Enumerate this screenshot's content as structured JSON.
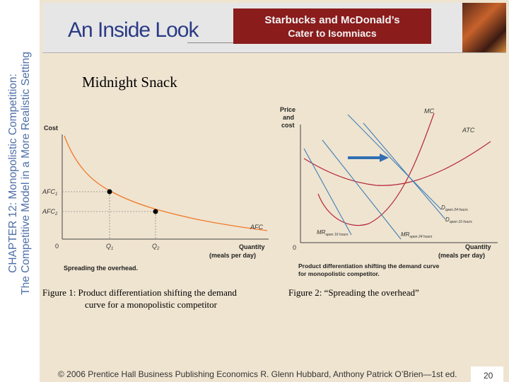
{
  "sidebar": {
    "chapter_line": "CHAPTER 12:  Monopolistic Competition:",
    "subtitle_line": "The Competitive Model in a More Realistic Setting"
  },
  "banner": {
    "title": "An Inside Look",
    "headline_1": "Starbucks and McDonald’s",
    "headline_2": "Cater to Isomniacs"
  },
  "slide": {
    "heading": "Midnight Snack"
  },
  "graph_left": {
    "y_title": "Cost",
    "afc1": "AFC",
    "afc1_sub": "1",
    "afc2": "AFC",
    "afc2_sub": "2",
    "origin": "0",
    "q1": "Q",
    "q1_sub": "1",
    "q2": "Q",
    "q2_sub": "2",
    "curve": "AFC",
    "x_title_1": "Quantity",
    "x_title_2": "(meals  per  day)",
    "caption": "Spreading  the  overhead."
  },
  "graph_right": {
    "y_title_1": "Price",
    "y_title_2": "and",
    "y_title_3": "cost",
    "mc": "MC",
    "atc": "ATC",
    "d24": "D",
    "d24_sub": "open 24 hours",
    "d6": "D",
    "d6_sub": "open 16 hours",
    "mr24": "MR",
    "mr24_sub": "open 16 hours",
    "mr6": "MR",
    "mr6_sub": "open 24 hours",
    "origin": "0",
    "x_title_1": "Quantity",
    "x_title_2": "(meals  per  day)",
    "caption_1": "Product  differentiation  shifting  the  demand  curve",
    "caption_2": "for  monopolistic  competitor."
  },
  "captions": {
    "fig1_line1": "Figure 1:  Product differentiation shifting the demand",
    "fig1_line2": "curve for a monopolistic competitor",
    "fig2": "Figure 2:  “Spreading the overhead”"
  },
  "footer": {
    "text": "© 2006 Prentice Hall Business Publishing   Economics  R. Glenn Hubbard, Anthony Patrick O’Brien—1st ed.",
    "page": "20"
  },
  "colors": {
    "accent_blue": "#4f6fa8",
    "curve_orange": "#f07a2a",
    "curve_blue": "#3f7fb9",
    "curve_red": "#b5273a",
    "banner_red": "#8a1c1c"
  }
}
